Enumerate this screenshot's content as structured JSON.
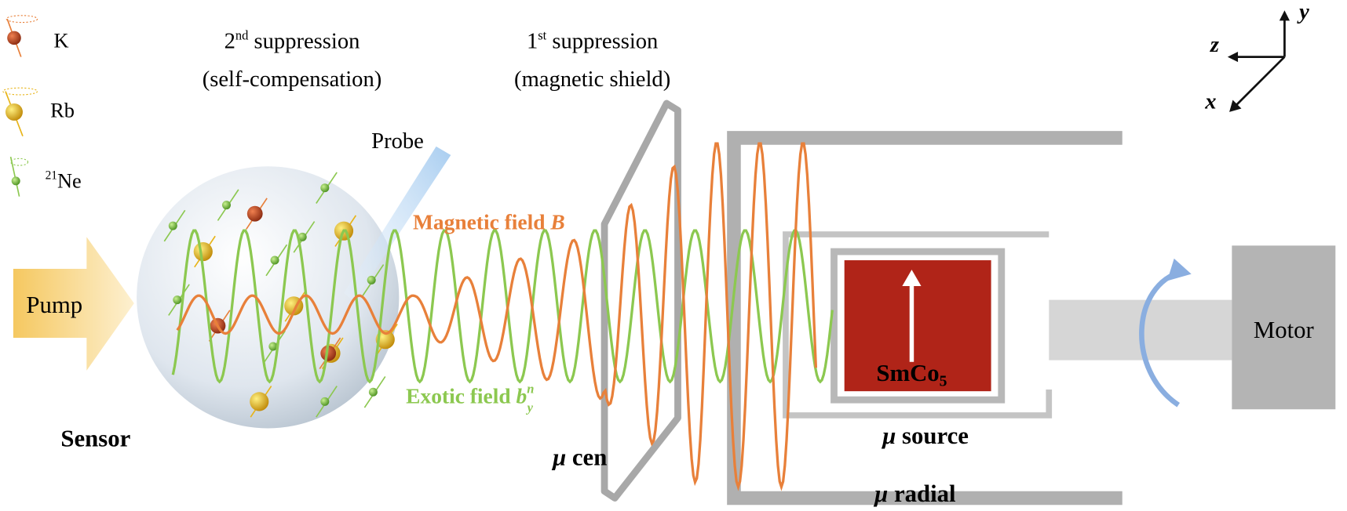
{
  "legend": {
    "items": [
      {
        "label": "K",
        "color": "#c8461e"
      },
      {
        "label": "Rb",
        "color": "#e8b418"
      },
      {
        "label_sup": "21",
        "label": "Ne",
        "color": "#7cc04a"
      }
    ]
  },
  "labels": {
    "second_suppression_num": "2",
    "second_suppression_sup": "nd",
    "second_suppression": " suppression",
    "second_suppression_sub": "(self-compensation)",
    "first_suppression_num": "1",
    "first_suppression_sup": "st",
    "first_suppression": " suppression",
    "first_suppression_sub": "(magnetic shield)",
    "probe": "Probe",
    "pump": "Pump",
    "sensor": "Sensor",
    "magnetic_field": "Magnetic field ",
    "magnetic_field_symbol": "B",
    "exotic_field": "Exotic field ",
    "exotic_field_symbol": "b",
    "exotic_field_sup": "n",
    "exotic_field_sub": "y",
    "mu_cen": "cen",
    "mu_source": "source",
    "mu_radial": "radial",
    "mu": "μ",
    "smco": "SmCo",
    "smco_sub": "5",
    "motor": "Motor",
    "axis_x": "x",
    "axis_y": "y",
    "axis_z": "z"
  },
  "colors": {
    "magnetic_field": "#e8803a",
    "exotic_field": "#8cc850",
    "magnet": "#b02418",
    "shield": "#b0b0b0",
    "probe": "#a8cdf0",
    "pump": "#f5c860"
  }
}
